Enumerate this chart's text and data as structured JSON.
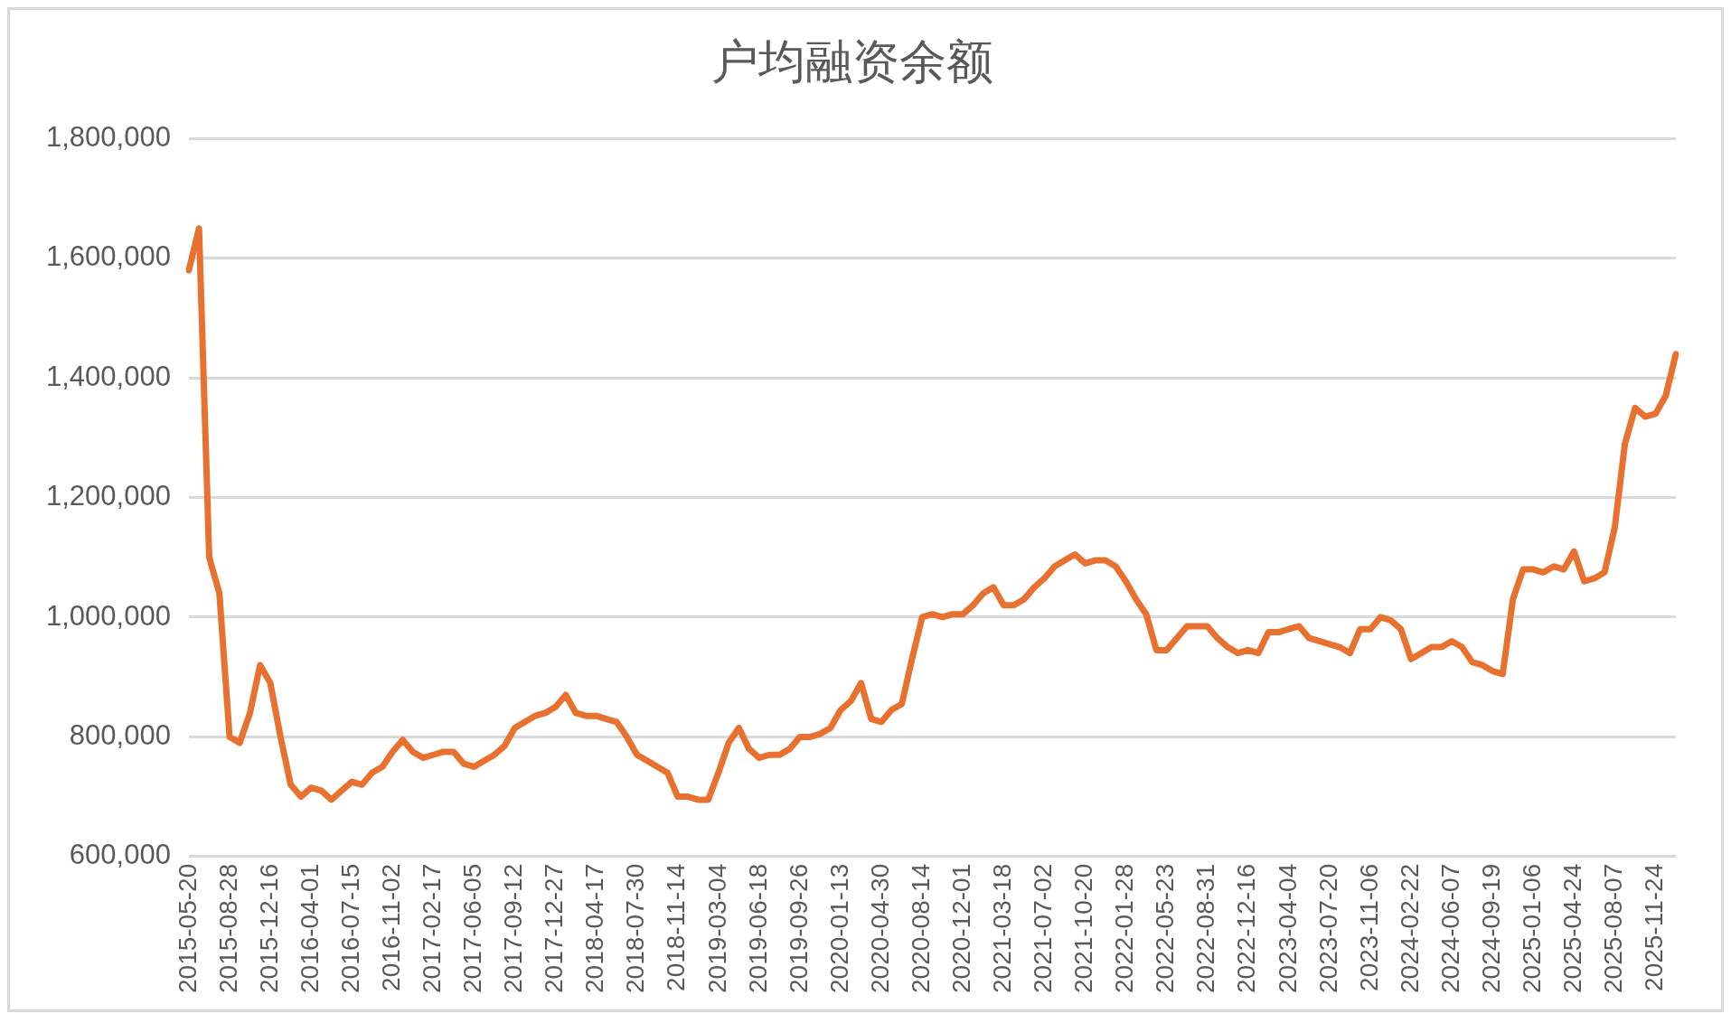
{
  "chart_data": {
    "type": "line",
    "title": "户均融资余额",
    "categories": [
      "2015-05-20",
      null,
      null,
      null,
      "2015-08-28",
      null,
      null,
      null,
      "2015-12-16",
      null,
      null,
      null,
      "2016-04-01",
      null,
      null,
      null,
      "2016-07-15",
      null,
      null,
      null,
      "2016-11-02",
      null,
      null,
      null,
      "2017-02-17",
      null,
      null,
      null,
      "2017-06-05",
      null,
      null,
      null,
      "2017-09-12",
      null,
      null,
      null,
      "2017-12-27",
      null,
      null,
      null,
      "2018-04-17",
      null,
      null,
      null,
      "2018-07-30",
      null,
      null,
      null,
      "2018-11-14",
      null,
      null,
      null,
      "2019-03-04",
      null,
      null,
      null,
      "2019-06-18",
      null,
      null,
      null,
      "2019-09-26",
      null,
      null,
      null,
      "2020-01-13",
      null,
      null,
      null,
      "2020-04-30",
      null,
      null,
      null,
      "2020-08-14",
      null,
      null,
      null,
      "2020-12-01",
      null,
      null,
      null,
      "2021-03-18",
      null,
      null,
      null,
      "2021-07-02",
      null,
      null,
      null,
      "2021-10-20",
      null,
      null,
      null,
      "2022-01-28",
      null,
      null,
      null,
      "2022-05-23",
      null,
      null,
      null,
      "2022-08-31",
      null,
      null,
      null,
      "2022-12-16",
      null,
      null,
      null,
      "2023-04-04",
      null,
      null,
      null,
      "2023-07-20",
      null,
      null,
      null,
      "2023-11-06",
      null,
      null,
      null,
      "2024-02-22",
      null,
      null,
      null,
      "2024-06-07",
      null,
      null,
      null,
      "2024-09-19",
      null,
      null,
      null,
      "2025-01-06",
      null,
      null,
      null,
      "2025-04-24",
      null,
      null,
      null,
      "2025-08-07",
      null,
      null,
      null,
      "2025-11-24",
      null,
      null
    ],
    "series": [
      {
        "color": "#e8712f",
        "values": [
          1580000,
          1650000,
          1100000,
          1040000,
          800000,
          790000,
          840000,
          920000,
          890000,
          800000,
          720000,
          700000,
          715000,
          710000,
          695000,
          710000,
          725000,
          720000,
          740000,
          750000,
          775000,
          795000,
          775000,
          765000,
          770000,
          775000,
          775000,
          755000,
          750000,
          760000,
          770000,
          785000,
          815000,
          825000,
          835000,
          840000,
          850000,
          870000,
          840000,
          835000,
          835000,
          830000,
          825000,
          800000,
          770000,
          760000,
          750000,
          740000,
          700000,
          700000,
          695000,
          695000,
          740000,
          790000,
          815000,
          780000,
          765000,
          770000,
          770000,
          780000,
          800000,
          800000,
          805000,
          815000,
          845000,
          860000,
          890000,
          830000,
          825000,
          845000,
          855000,
          930000,
          1000000,
          1005000,
          1000000,
          1005000,
          1005000,
          1020000,
          1040000,
          1050000,
          1020000,
          1020000,
          1030000,
          1050000,
          1065000,
          1085000,
          1095000,
          1105000,
          1090000,
          1095000,
          1095000,
          1085000,
          1060000,
          1030000,
          1005000,
          945000,
          945000,
          965000,
          985000,
          985000,
          985000,
          965000,
          950000,
          940000,
          945000,
          940000,
          975000,
          975000,
          980000,
          985000,
          965000,
          960000,
          955000,
          950000,
          940000,
          980000,
          980000,
          1000000,
          995000,
          980000,
          930000,
          940000,
          950000,
          950000,
          960000,
          950000,
          925000,
          920000,
          910000,
          905000,
          1030000,
          1080000,
          1080000,
          1075000,
          1085000,
          1080000,
          1110000,
          1060000,
          1065000,
          1075000,
          1150000,
          1290000,
          1350000,
          1335000,
          1340000,
          1370000,
          1440000
        ]
      }
    ],
    "ylim": [
      600000,
      1800000
    ],
    "yticks": [
      {
        "value": 600000,
        "label": "600,000"
      },
      {
        "value": 800000,
        "label": "800,000"
      },
      {
        "value": 1000000,
        "label": "1,000,000"
      },
      {
        "value": 1200000,
        "label": "1,200,000"
      },
      {
        "value": 1400000,
        "label": "1,400,000"
      },
      {
        "value": 1600000,
        "label": "1,600,000"
      },
      {
        "value": 1800000,
        "label": "1,800,000"
      }
    ],
    "grid": "y",
    "legend": false,
    "marker": "none",
    "line_style": "solid"
  }
}
